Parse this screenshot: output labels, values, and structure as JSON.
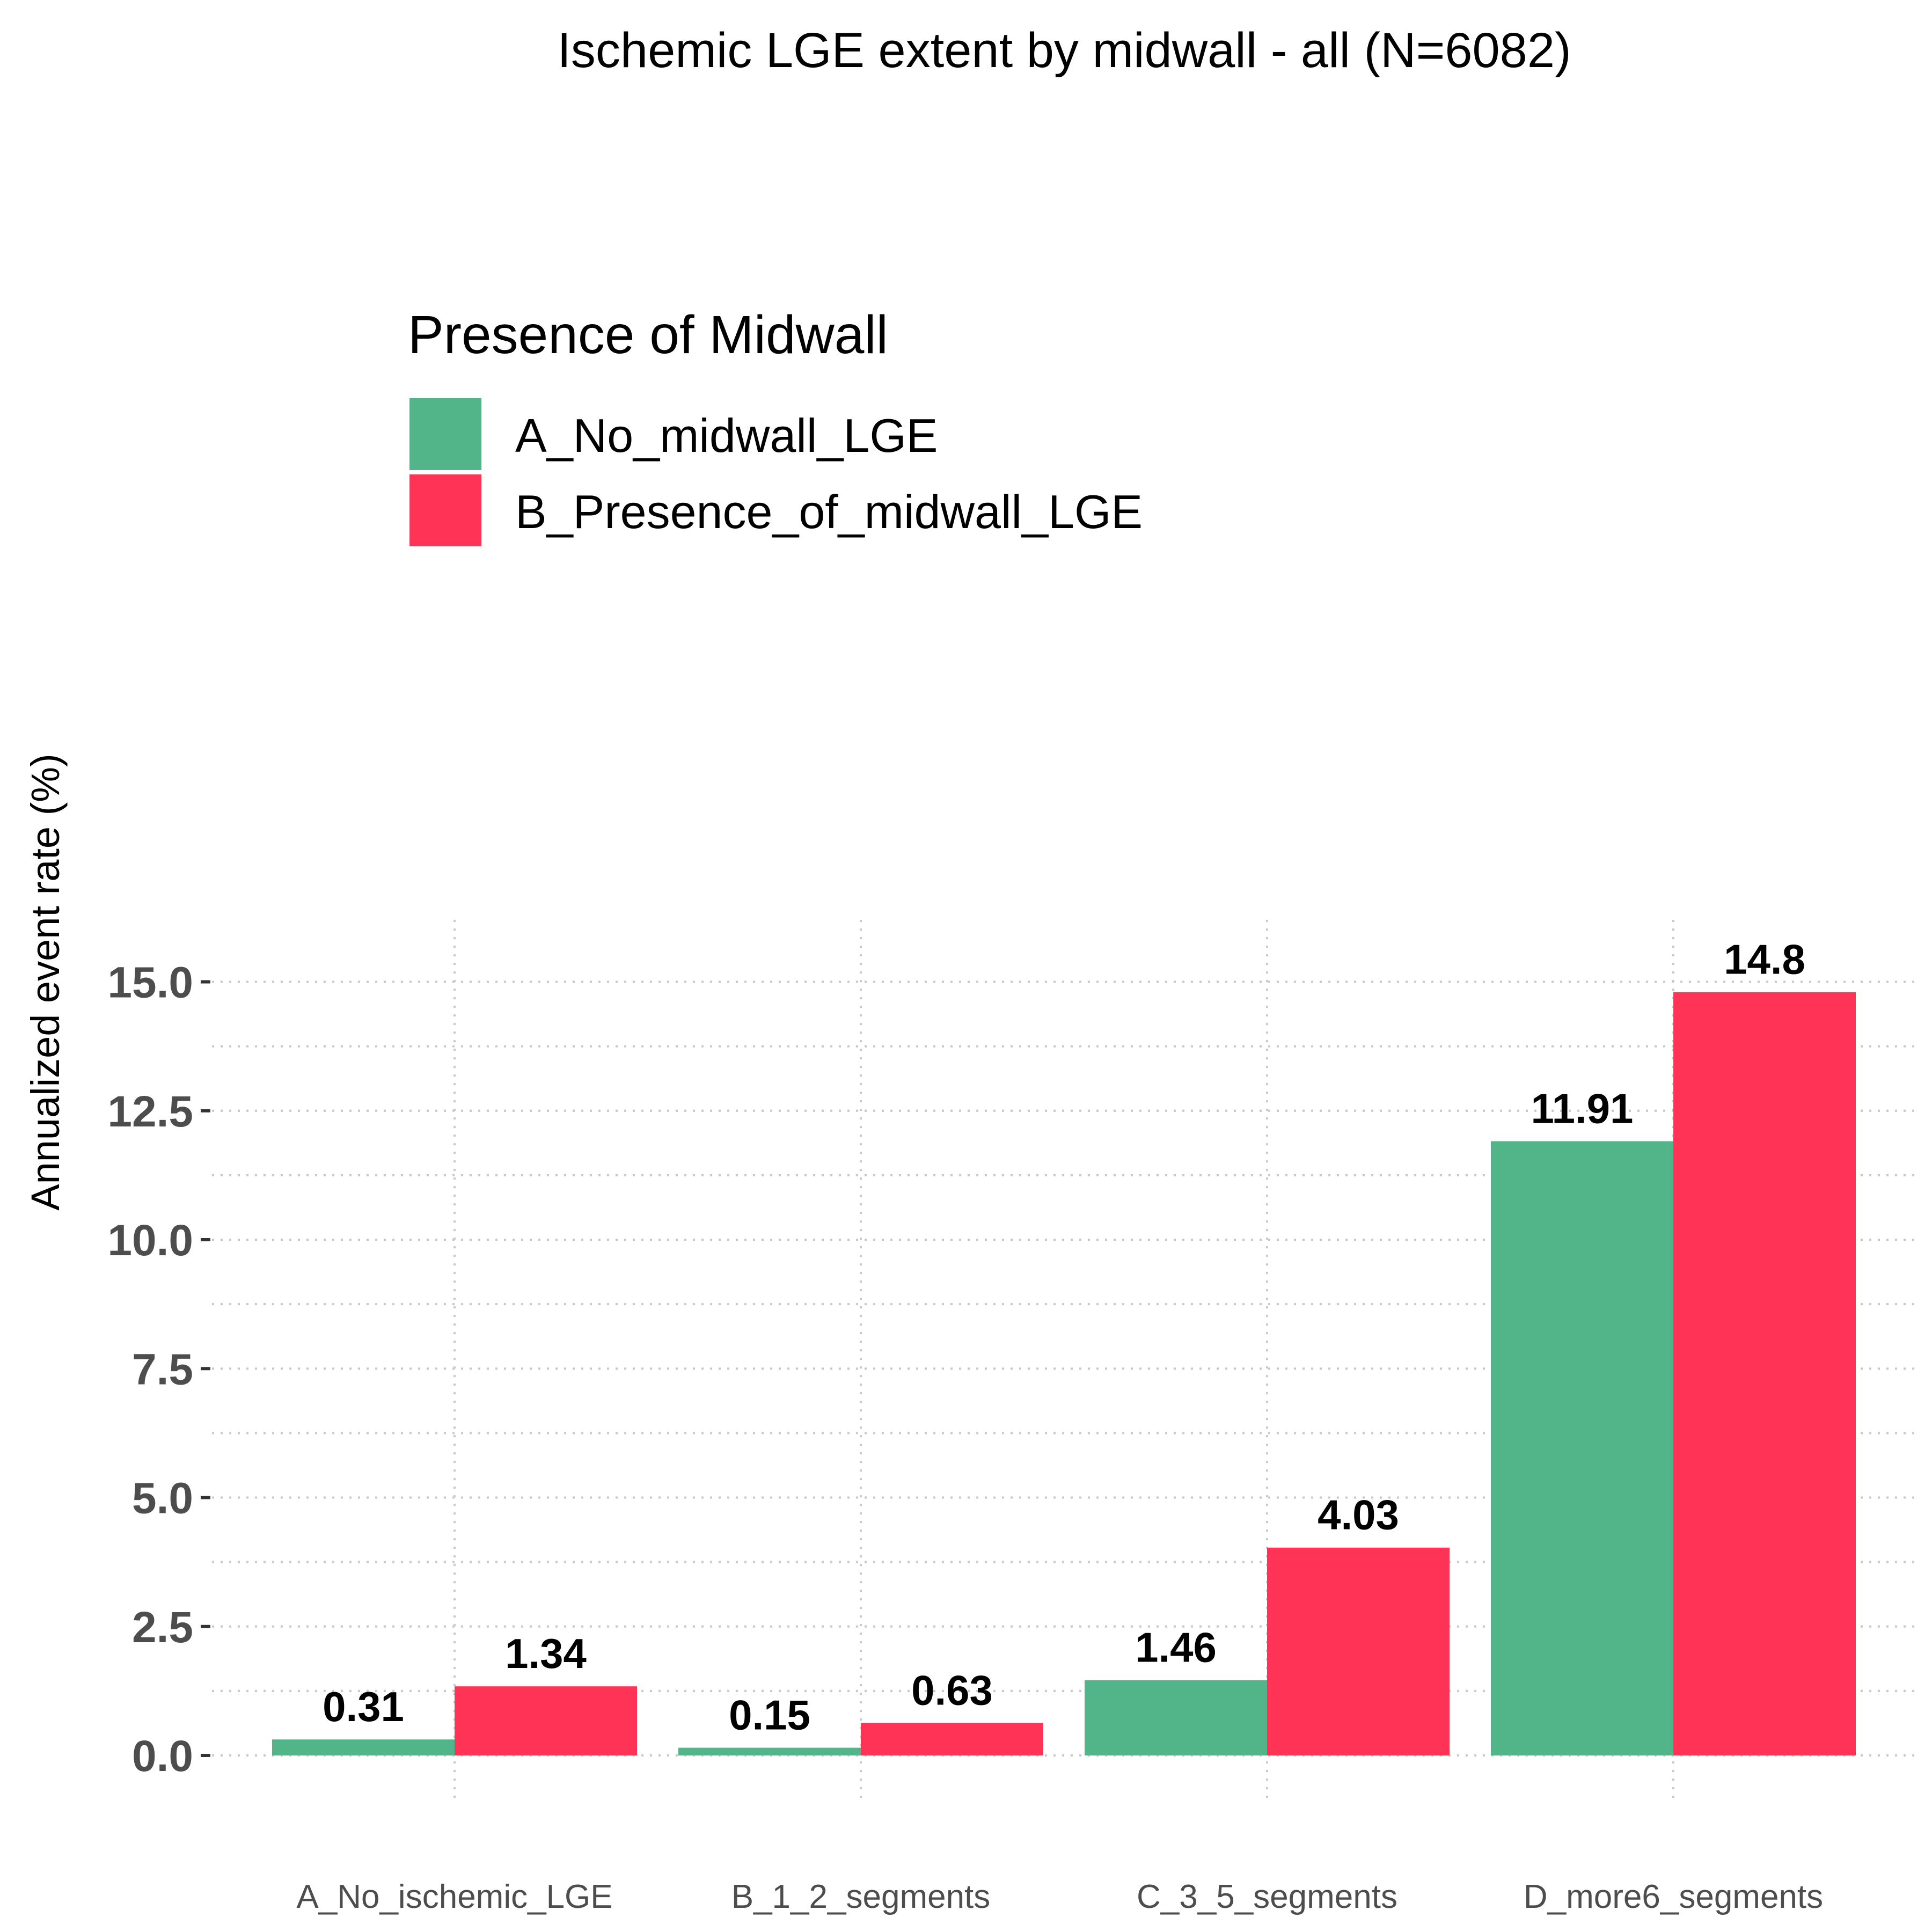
{
  "chart_data": {
    "type": "bar",
    "title": "Ischemic LGE extent by midwall - all (N=6082)",
    "ylabel": "Annualized event rate (%)",
    "xlabel": "",
    "categories": [
      "A_No_ischemic_LGE",
      "B_1_2_segments",
      "C_3_5_segments",
      "D_more6_segments"
    ],
    "series": [
      {
        "name": "A_No_midwall_LGE",
        "color": "#52b589",
        "values": [
          0.31,
          0.15,
          1.46,
          11.91
        ],
        "labels": [
          "0.31",
          "0.15",
          "1.46",
          "11.91"
        ]
      },
      {
        "name": "B_Presence_of_midwall_LGE",
        "color": "#ff3355",
        "values": [
          1.34,
          0.63,
          4.03,
          14.8
        ],
        "labels": [
          "1.34",
          "0.63",
          "4.03",
          "14.8"
        ]
      }
    ],
    "ylim": [
      -0.9,
      16.2
    ],
    "yticks": [
      0,
      2.5,
      5,
      7.5,
      10,
      12.5,
      15
    ],
    "ytick_labels": [
      "0.0",
      "2.5",
      "5.0",
      "7.5",
      "10.0",
      "12.5",
      "15.0"
    ],
    "grid": true,
    "legend": {
      "title": "Presence of Midwall",
      "placement": "top-left"
    }
  }
}
